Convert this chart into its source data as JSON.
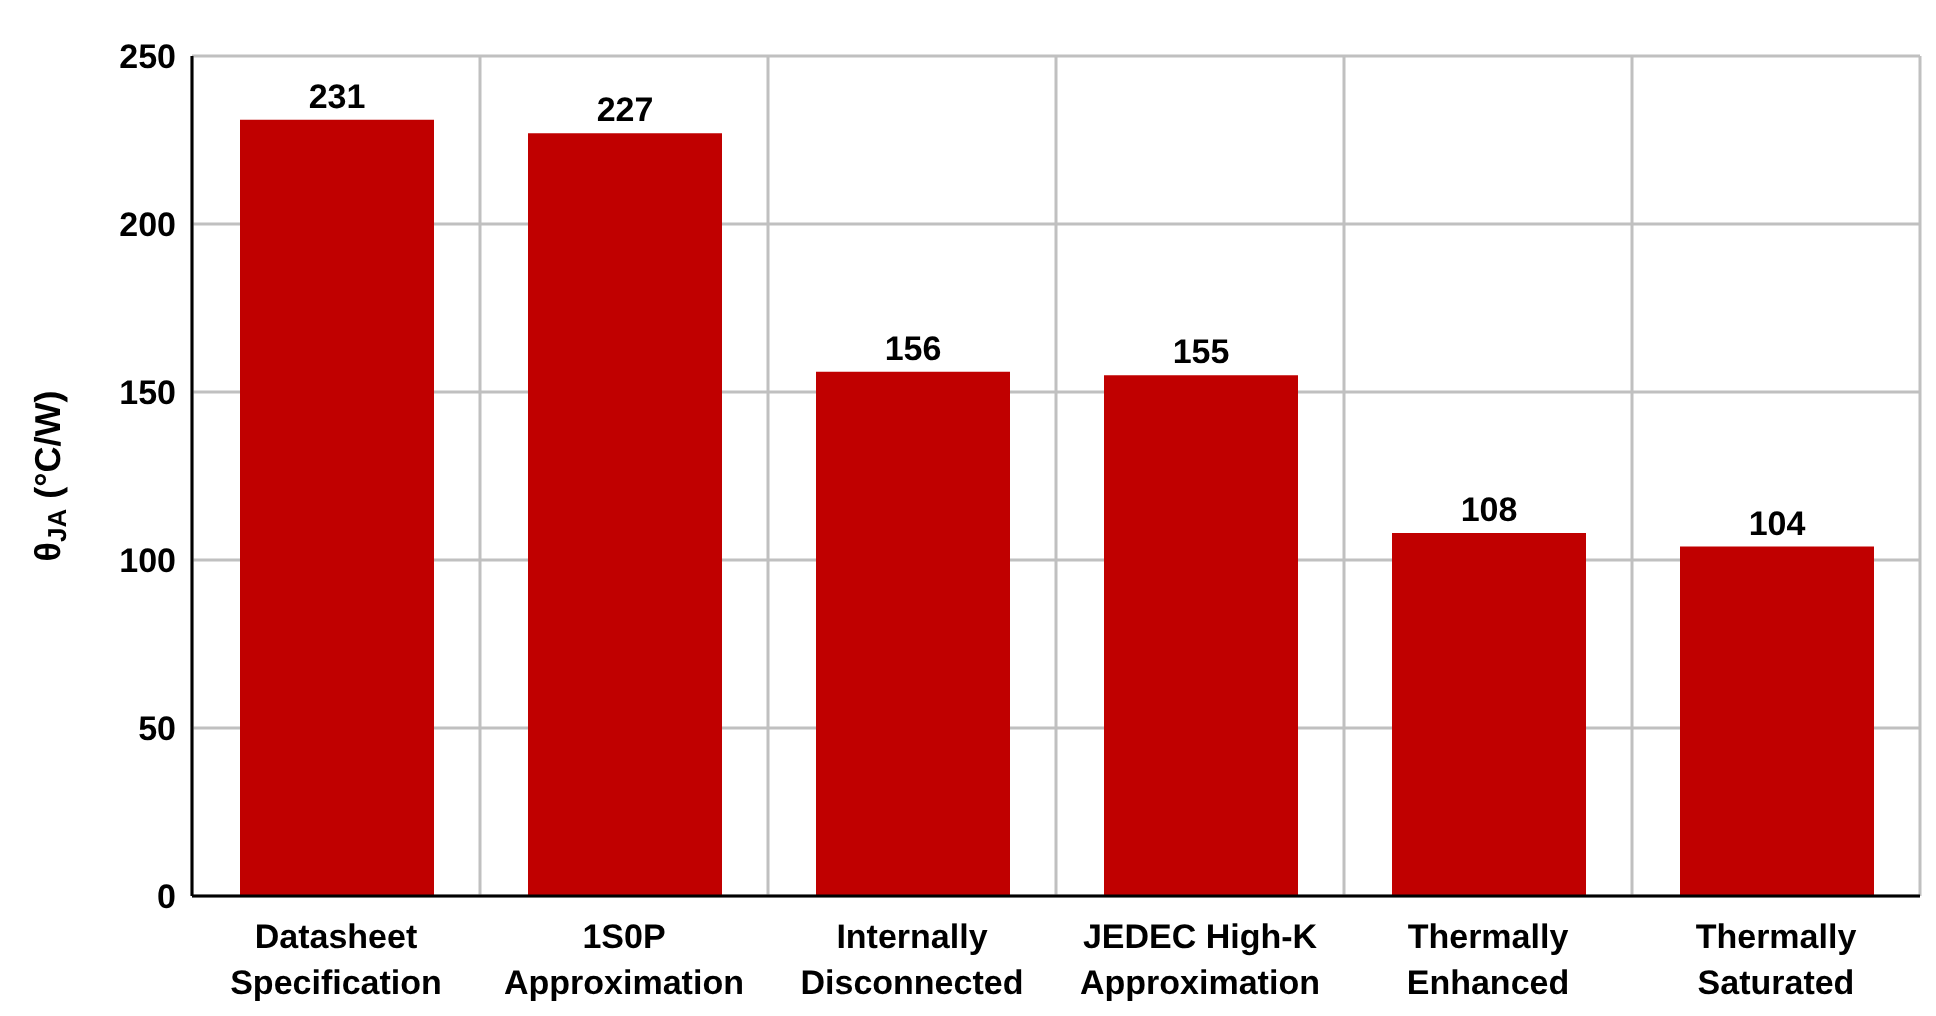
{
  "chart_data": {
    "type": "bar",
    "ylabel": "θ$_{JA}$ (°C/W)",
    "categories": [
      "Datasheet\nSpecification",
      "1S0P\nApproximation",
      "Internally\nDisconnected",
      "JEDEC High-K\nApproximation",
      "Thermally\nEnhanced",
      "Thermally\nSaturated"
    ],
    "values": [
      231,
      227,
      156,
      155,
      108,
      104
    ],
    "color": "#c00000",
    "ylim": [
      0,
      250
    ],
    "yticks": [
      0,
      50,
      100,
      150,
      200,
      250
    ],
    "grid": true,
    "data_labels": true
  }
}
